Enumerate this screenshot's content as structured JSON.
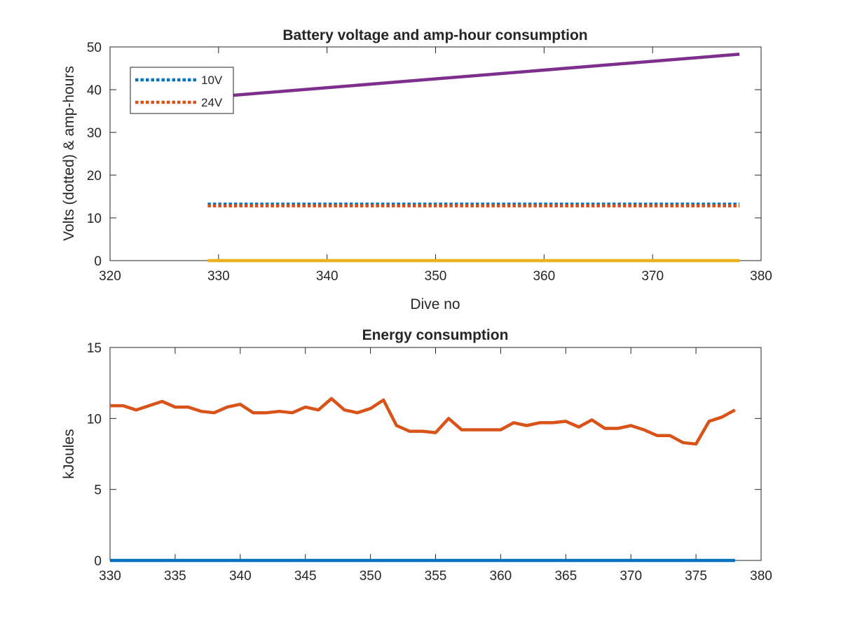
{
  "chart_data": [
    {
      "type": "line",
      "title": "Battery voltage and amp-hour consumption",
      "xlabel": "Dive no",
      "ylabel": "Volts (dotted) & amp-hours",
      "xlim": [
        320,
        380
      ],
      "ylim": [
        0,
        50
      ],
      "xticks": [
        320,
        330,
        340,
        350,
        360,
        370,
        380
      ],
      "yticks": [
        0,
        10,
        20,
        30,
        40,
        50
      ],
      "grid": false,
      "legend": {
        "placement": "top-left",
        "entries": [
          "10V",
          "24V"
        ]
      },
      "series": [
        {
          "name": "10V",
          "style": "dotted",
          "color": "#0072BD",
          "x": [
            329,
            378
          ],
          "y": [
            13.2,
            13.2
          ]
        },
        {
          "name": "24V",
          "style": "dotted",
          "color": "#D95319",
          "x": [
            329,
            378
          ],
          "y": [
            12.8,
            12.8
          ]
        },
        {
          "style": "solid",
          "color": "#7E2F8E",
          "x": [
            329,
            378
          ],
          "y": [
            38.2,
            48.3
          ]
        },
        {
          "style": "solid",
          "color": "#EDB120",
          "x": [
            329,
            378
          ],
          "y": [
            0,
            0
          ]
        }
      ]
    },
    {
      "type": "line",
      "title": "Energy consumption",
      "xlabel": "",
      "ylabel": "kJoules",
      "xlim": [
        330,
        380
      ],
      "ylim": [
        0,
        15
      ],
      "xticks": [
        330,
        335,
        340,
        345,
        350,
        355,
        360,
        365,
        370,
        375,
        380
      ],
      "yticks": [
        0,
        5,
        10,
        15
      ],
      "grid": false,
      "series": [
        {
          "style": "solid",
          "color": "#D95319",
          "x": [
            330,
            331,
            332,
            333,
            334,
            335,
            336,
            337,
            338,
            339,
            340,
            341,
            342,
            343,
            344,
            345,
            346,
            347,
            348,
            349,
            350,
            351,
            352,
            353,
            354,
            355,
            356,
            357,
            358,
            359,
            360,
            361,
            362,
            363,
            364,
            365,
            366,
            367,
            368,
            369,
            370,
            371,
            372,
            373,
            374,
            375,
            376,
            377,
            378
          ],
          "y": [
            10.9,
            10.9,
            10.6,
            10.9,
            11.2,
            10.8,
            10.8,
            10.5,
            10.4,
            10.8,
            11.0,
            10.4,
            10.4,
            10.5,
            10.4,
            10.8,
            10.6,
            11.4,
            10.6,
            10.4,
            10.7,
            11.3,
            9.5,
            9.1,
            9.1,
            9.0,
            10.0,
            9.2,
            9.2,
            9.2,
            9.2,
            9.7,
            9.5,
            9.7,
            9.7,
            9.8,
            9.4,
            9.9,
            9.3,
            9.3,
            9.5,
            9.2,
            8.8,
            8.8,
            8.3,
            8.2,
            9.8,
            10.1,
            10.6
          ]
        },
        {
          "style": "solid",
          "color": "#0072BD",
          "x": [
            330,
            378
          ],
          "y": [
            0,
            0
          ]
        }
      ]
    }
  ]
}
